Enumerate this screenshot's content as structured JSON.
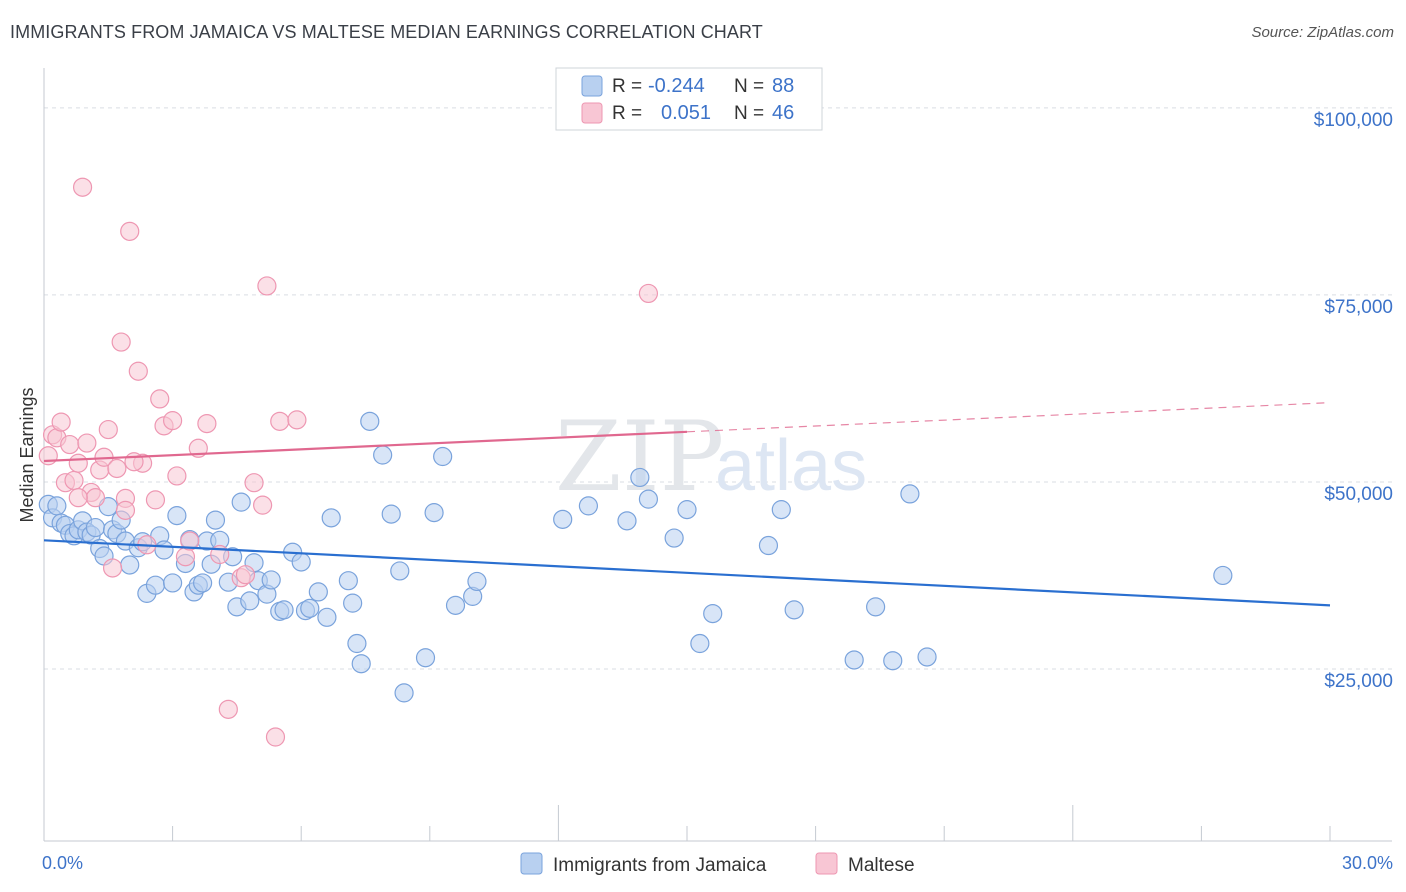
{
  "title": "IMMIGRANTS FROM JAMAICA VS MALTESE MEDIAN EARNINGS CORRELATION CHART",
  "source": "Source: ZipAtlas.com",
  "watermark": {
    "zip": "ZIP",
    "atlas": "atlas"
  },
  "colors": {
    "blue_fill": "#b8d0f0",
    "blue_stroke": "#7aa3dc",
    "blue_line": "#2a6fd0",
    "pink_fill": "#f8c6d4",
    "pink_stroke": "#ee97b2",
    "pink_line": "#e0688f",
    "grid": "#d9dde3",
    "axis_text": "#3d73c9"
  },
  "legend": {
    "rows": [
      {
        "r_label": "R =",
        "r_value": "-0.244",
        "n_label": "N =",
        "n_value": "88"
      },
      {
        "r_label": "R =",
        "r_value": "0.051",
        "n_label": "N =",
        "n_value": "46"
      }
    ]
  },
  "chart_data": {
    "type": "scatter",
    "title": "IMMIGRANTS FROM JAMAICA VS MALTESE MEDIAN EARNINGS CORRELATION CHART",
    "ylabel": "Median Earnings",
    "xlim": [
      0,
      30
    ],
    "ylim": [
      2000,
      104000
    ],
    "x_tick_labels": [
      "0.0%",
      "30.0%"
    ],
    "y_ticks": [
      {
        "value": 25000,
        "label": "$25,000"
      },
      {
        "value": 50000,
        "label": "$50,000"
      },
      {
        "value": 75000,
        "label": "$75,000"
      },
      {
        "value": 100000,
        "label": "$100,000"
      }
    ],
    "series": [
      {
        "name": "Immigrants from Jamaica",
        "color": "blue",
        "trend": {
          "x0": 0,
          "y0": 42200,
          "x1": 30,
          "y1": 33500,
          "dashed_from": null
        },
        "points": [
          [
            0.1,
            47000
          ],
          [
            0.2,
            45200
          ],
          [
            0.3,
            46800
          ],
          [
            0.4,
            44500
          ],
          [
            0.5,
            44200
          ],
          [
            0.6,
            43100
          ],
          [
            0.7,
            42800
          ],
          [
            0.8,
            43600
          ],
          [
            0.9,
            44800
          ],
          [
            1.0,
            43300
          ],
          [
            1.1,
            42900
          ],
          [
            1.2,
            43900
          ],
          [
            1.3,
            41100
          ],
          [
            1.4,
            40100
          ],
          [
            1.5,
            46700
          ],
          [
            1.6,
            43600
          ],
          [
            1.7,
            43100
          ],
          [
            1.8,
            44900
          ],
          [
            1.9,
            42100
          ],
          [
            2.0,
            38900
          ],
          [
            2.2,
            41200
          ],
          [
            2.3,
            42000
          ],
          [
            2.4,
            35100
          ],
          [
            2.6,
            36200
          ],
          [
            2.7,
            42800
          ],
          [
            2.8,
            40900
          ],
          [
            3.0,
            36500
          ],
          [
            3.1,
            45500
          ],
          [
            3.3,
            39100
          ],
          [
            3.4,
            42300
          ],
          [
            3.5,
            35300
          ],
          [
            3.6,
            36200
          ],
          [
            3.7,
            36500
          ],
          [
            3.8,
            42100
          ],
          [
            3.9,
            39000
          ],
          [
            4.0,
            44900
          ],
          [
            4.1,
            42200
          ],
          [
            4.3,
            36600
          ],
          [
            4.4,
            40000
          ],
          [
            4.5,
            33300
          ],
          [
            4.6,
            47300
          ],
          [
            4.8,
            34100
          ],
          [
            4.9,
            39200
          ],
          [
            5.0,
            36800
          ],
          [
            5.2,
            35000
          ],
          [
            5.3,
            36900
          ],
          [
            5.5,
            32700
          ],
          [
            5.6,
            32900
          ],
          [
            5.8,
            40600
          ],
          [
            6.0,
            39300
          ],
          [
            6.1,
            32800
          ],
          [
            6.2,
            33100
          ],
          [
            6.4,
            35300
          ],
          [
            6.6,
            31900
          ],
          [
            6.7,
            45200
          ],
          [
            7.1,
            36800
          ],
          [
            7.2,
            33800
          ],
          [
            7.3,
            28400
          ],
          [
            7.4,
            25700
          ],
          [
            7.6,
            58100
          ],
          [
            7.9,
            53600
          ],
          [
            8.1,
            45700
          ],
          [
            8.3,
            38100
          ],
          [
            8.4,
            21800
          ],
          [
            8.9,
            26500
          ],
          [
            9.1,
            45900
          ],
          [
            9.3,
            53400
          ],
          [
            9.6,
            33500
          ],
          [
            10.0,
            34700
          ],
          [
            10.1,
            36700
          ],
          [
            12.1,
            45000
          ],
          [
            12.7,
            46800
          ],
          [
            13.6,
            44800
          ],
          [
            13.9,
            50600
          ],
          [
            14.1,
            47700
          ],
          [
            14.7,
            42500
          ],
          [
            15.0,
            46300
          ],
          [
            15.3,
            28400
          ],
          [
            15.6,
            32400
          ],
          [
            16.9,
            41500
          ],
          [
            17.2,
            46300
          ],
          [
            17.5,
            32900
          ],
          [
            18.9,
            26200
          ],
          [
            19.4,
            33300
          ],
          [
            19.8,
            26100
          ],
          [
            20.2,
            48400
          ],
          [
            20.6,
            26600
          ],
          [
            27.5,
            37500
          ]
        ]
      },
      {
        "name": "Maltese",
        "color": "pink",
        "trend": {
          "x0": 0,
          "y0": 52800,
          "x1": 30,
          "y1": 60600,
          "dashed_from": 15.0
        },
        "points": [
          [
            0.1,
            53500
          ],
          [
            0.2,
            56300
          ],
          [
            0.3,
            55900
          ],
          [
            0.4,
            58000
          ],
          [
            0.5,
            49900
          ],
          [
            0.6,
            55000
          ],
          [
            0.7,
            50200
          ],
          [
            0.8,
            52500
          ],
          [
            0.9,
            89400
          ],
          [
            1.0,
            55200
          ],
          [
            1.1,
            48600
          ],
          [
            1.2,
            47900
          ],
          [
            1.3,
            51600
          ],
          [
            1.4,
            53300
          ],
          [
            1.5,
            57000
          ],
          [
            1.6,
            38500
          ],
          [
            1.7,
            51800
          ],
          [
            1.8,
            68700
          ],
          [
            1.9,
            47800
          ],
          [
            2.0,
            83500
          ],
          [
            2.2,
            64800
          ],
          [
            2.3,
            52500
          ],
          [
            2.4,
            41600
          ],
          [
            2.6,
            47600
          ],
          [
            2.7,
            61100
          ],
          [
            2.8,
            57500
          ],
          [
            3.0,
            58200
          ],
          [
            3.1,
            50800
          ],
          [
            3.3,
            40000
          ],
          [
            3.4,
            42100
          ],
          [
            3.6,
            54500
          ],
          [
            3.8,
            57800
          ],
          [
            4.1,
            40300
          ],
          [
            4.3,
            19600
          ],
          [
            4.6,
            37200
          ],
          [
            4.7,
            37600
          ],
          [
            4.9,
            49900
          ],
          [
            5.1,
            46900
          ],
          [
            5.2,
            76200
          ],
          [
            5.4,
            15900
          ],
          [
            5.5,
            58100
          ],
          [
            5.9,
            58300
          ],
          [
            0.8,
            47900
          ],
          [
            1.9,
            46200
          ],
          [
            2.1,
            52700
          ],
          [
            14.1,
            75200
          ]
        ]
      }
    ]
  },
  "bottom_legend": [
    {
      "label": "Immigrants from Jamaica",
      "color": "blue"
    },
    {
      "label": "Maltese",
      "color": "pink"
    }
  ]
}
